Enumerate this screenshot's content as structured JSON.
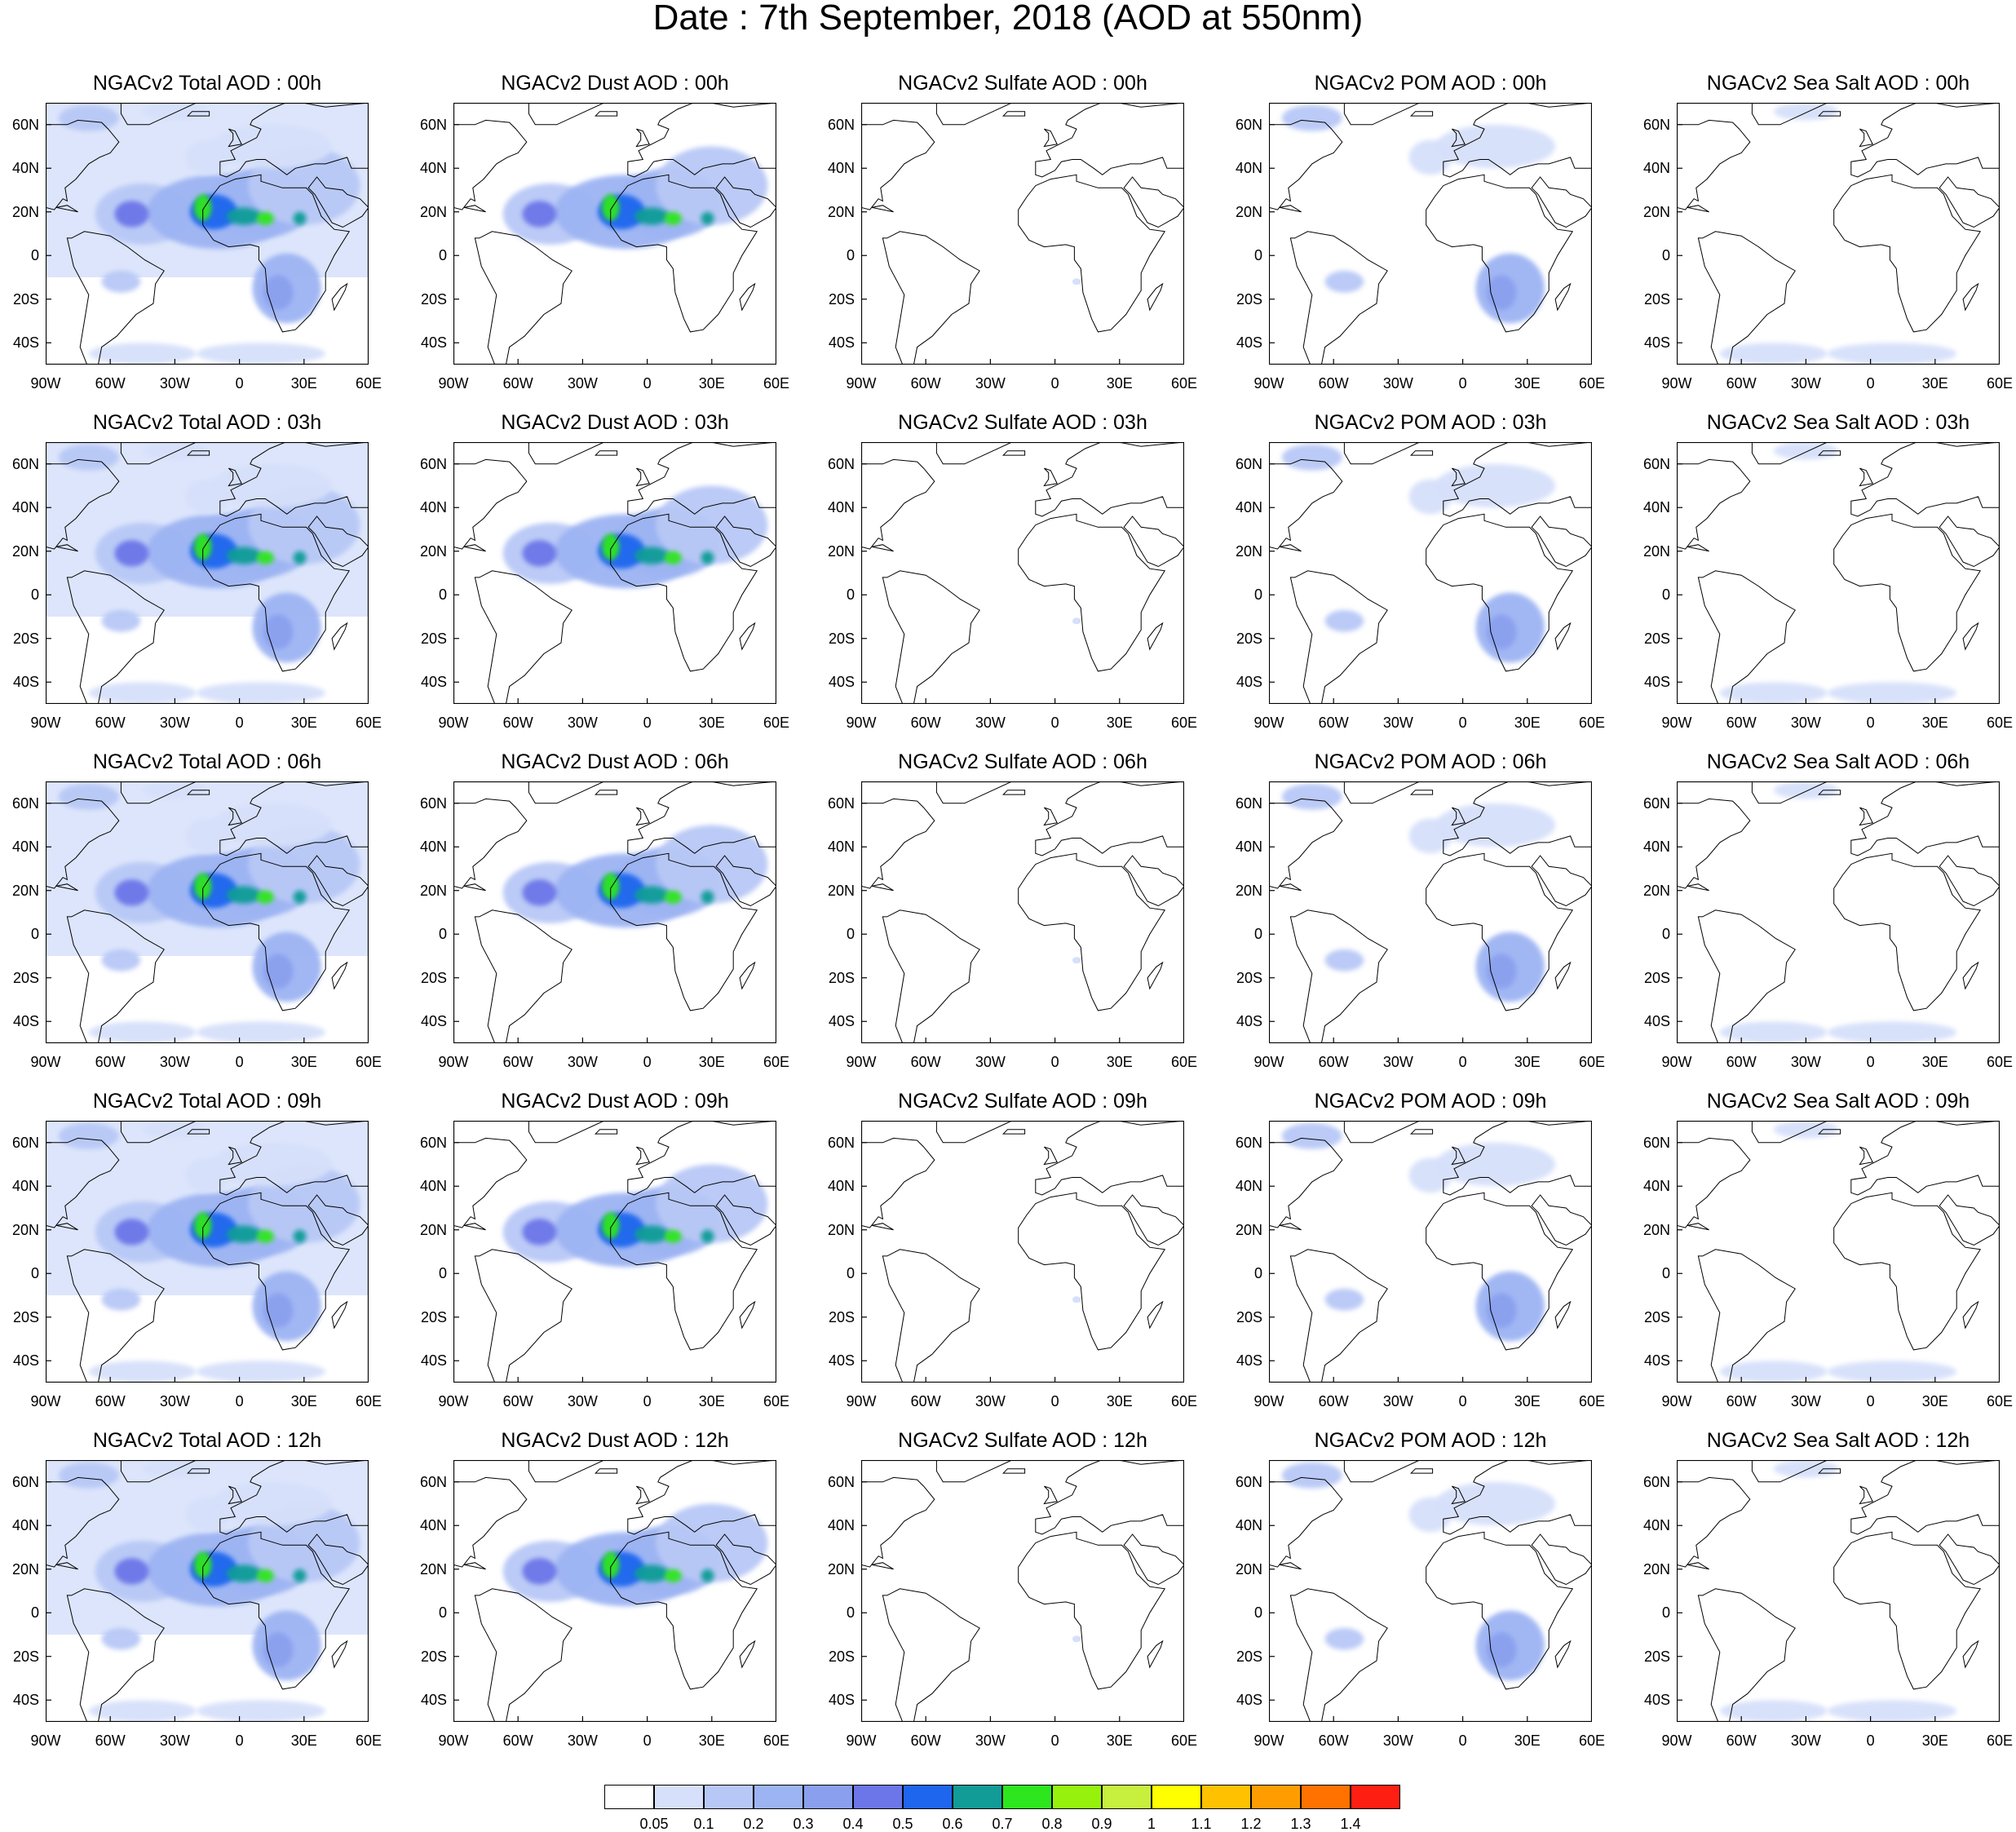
{
  "title": "Date : 7th September, 2018 (AOD at 550nm)",
  "panel_titles": [
    [
      "NGACv2 Total AOD : 00h",
      "NGACv2 Dust AOD : 00h",
      "NGACv2 Sulfate AOD : 00h",
      "NGACv2 POM AOD : 00h",
      "NGACv2 Sea Salt AOD : 00h"
    ],
    [
      "NGACv2 Total AOD : 03h",
      "NGACv2 Dust AOD : 03h",
      "NGACv2 Sulfate AOD : 03h",
      "NGACv2 POM AOD : 03h",
      "NGACv2 Sea Salt AOD : 03h"
    ],
    [
      "NGACv2 Total AOD : 06h",
      "NGACv2 Dust AOD : 06h",
      "NGACv2 Sulfate AOD : 06h",
      "NGACv2 POM AOD : 06h",
      "NGACv2 Sea Salt AOD : 06h"
    ],
    [
      "NGACv2 Total AOD : 09h",
      "NGACv2 Dust AOD : 09h",
      "NGACv2 Sulfate AOD : 09h",
      "NGACv2 POM AOD : 09h",
      "NGACv2 Sea Salt  AOD : 09h"
    ],
    [
      "NGACv2 Total AOD  : 12h",
      "NGACv2 Dust AOD : 12h",
      "NGACv2 Sulfate AOD : 12h",
      "NGACv2 POM  AOD : 12h",
      "NGACv2 Sea Salt  AOD : 12h"
    ]
  ],
  "lat_ticks": [
    "60N",
    "40N",
    "20N",
    "0",
    "20S",
    "40S"
  ],
  "lon_ticks": [
    "90W",
    "60W",
    "30W",
    "0",
    "30E",
    "60E"
  ],
  "map_extent": {
    "lon": [
      -90,
      60
    ],
    "lat": [
      -50,
      70
    ]
  },
  "colorbar": {
    "labels": [
      "0.05",
      "0.1",
      "0.2",
      "0.3",
      "0.4",
      "0.5",
      "0.6",
      "0.7",
      "0.8",
      "0.9",
      "1",
      "1.1",
      "1.2",
      "1.3",
      "1.4"
    ],
    "colors": [
      "#ffffff",
      "#d6e0fa",
      "#b8c8f6",
      "#9db4f3",
      "#8aa0ee",
      "#6c76e8",
      "#1f66ee",
      "#119c97",
      "#2ee61d",
      "#96f20c",
      "#c6ef3e",
      "#ffff00",
      "#ffc100",
      "#ff9d00",
      "#ff7200",
      "#ff1e12"
    ]
  },
  "aerosol_plumes": {
    "dust": [
      {
        "lon": -45,
        "lat": 19,
        "rx": 22,
        "ry": 14,
        "level": 2
      },
      {
        "lon": -10,
        "lat": 20,
        "rx": 33,
        "ry": 17,
        "level": 3
      },
      {
        "lon": 10,
        "lat": 24,
        "rx": 24,
        "ry": 16,
        "level": 3
      },
      {
        "lon": 30,
        "lat": 32,
        "rx": 26,
        "ry": 18,
        "level": 2
      },
      {
        "lon": -50,
        "lat": 19,
        "rx": 8,
        "ry": 6,
        "level": 5
      },
      {
        "lon": -12,
        "lat": 20,
        "rx": 11,
        "ry": 8,
        "level": 6
      },
      {
        "lon": -17,
        "lat": 22,
        "rx": 4,
        "ry": 6,
        "level": 8
      },
      {
        "lon": 2,
        "lat": 18,
        "rx": 8,
        "ry": 4,
        "level": 7
      },
      {
        "lon": 12,
        "lat": 17,
        "rx": 4,
        "ry": 3,
        "level": 8
      },
      {
        "lon": 28,
        "lat": 17,
        "rx": 3,
        "ry": 3,
        "level": 7
      }
    ],
    "smoke": [
      {
        "lon": 22,
        "lat": -15,
        "rx": 16,
        "ry": 16,
        "level": 3
      },
      {
        "lon": 18,
        "lat": -17,
        "rx": 7,
        "ry": 8,
        "level": 4
      },
      {
        "lon": -55,
        "lat": -12,
        "rx": 9,
        "ry": 5,
        "level": 2
      },
      {
        "lon": 15,
        "lat": 50,
        "rx": 28,
        "ry": 10,
        "level": 1
      },
      {
        "lon": -70,
        "lat": 63,
        "rx": 14,
        "ry": 6,
        "level": 2
      },
      {
        "lon": -15,
        "lat": 45,
        "rx": 10,
        "ry": 8,
        "level": 1
      }
    ],
    "seasalt": [
      {
        "lon": -45,
        "lat": -45,
        "rx": 25,
        "ry": 5,
        "level": 1
      },
      {
        "lon": 10,
        "lat": -45,
        "rx": 30,
        "ry": 5,
        "level": 1
      },
      {
        "lon": -30,
        "lat": 66,
        "rx": 15,
        "ry": 4,
        "level": 1
      }
    ]
  }
}
